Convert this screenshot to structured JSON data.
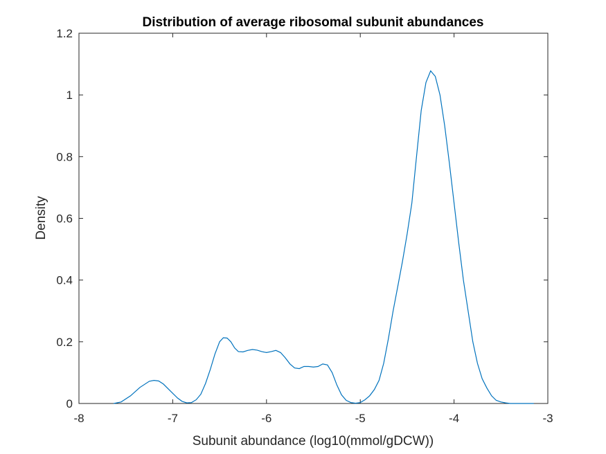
{
  "chart_data": {
    "type": "line",
    "title": "Distribution of average ribosomal subunit abundances",
    "xlabel": "Subunit abundance (log10(mmol/gDCW))",
    "ylabel": "Density",
    "xlim": [
      -8,
      -3
    ],
    "ylim": [
      0,
      1.2
    ],
    "xticks": [
      -8,
      -7,
      -6,
      -5,
      -4,
      -3
    ],
    "xtick_labels": [
      "-8",
      "-7",
      "-6",
      "-5",
      "-4",
      "-3"
    ],
    "yticks": [
      0,
      0.2,
      0.4,
      0.6,
      0.8,
      1,
      1.2
    ],
    "ytick_labels": [
      "0",
      "0.2",
      "0.4",
      "0.6",
      "0.8",
      "1",
      "1.2"
    ],
    "grid": false,
    "line_color": "#0072BD",
    "series": [
      {
        "x": [
          -7.63,
          -7.55,
          -7.45,
          -7.35,
          -7.25,
          -7.2,
          -7.15,
          -7.1,
          -7.0,
          -6.95,
          -6.9,
          -6.85,
          -6.8,
          -6.75,
          -6.7,
          -6.65,
          -6.6,
          -6.55,
          -6.5,
          -6.46,
          -6.42,
          -6.38,
          -6.34,
          -6.3,
          -6.25,
          -6.2,
          -6.15,
          -6.1,
          -6.05,
          -6.0,
          -5.95,
          -5.9,
          -5.85,
          -5.8,
          -5.75,
          -5.7,
          -5.65,
          -5.6,
          -5.55,
          -5.5,
          -5.45,
          -5.4,
          -5.35,
          -5.3,
          -5.25,
          -5.2,
          -5.15,
          -5.1,
          -5.05,
          -5.0,
          -4.95,
          -4.9,
          -4.85,
          -4.8,
          -4.75,
          -4.7,
          -4.65,
          -4.6,
          -4.55,
          -4.5,
          -4.45,
          -4.4,
          -4.35,
          -4.3,
          -4.25,
          -4.2,
          -4.15,
          -4.1,
          -4.05,
          -4.0,
          -3.95,
          -3.9,
          -3.85,
          -3.8,
          -3.75,
          -3.7,
          -3.65,
          -3.6,
          -3.55,
          -3.5,
          -3.45,
          -3.4,
          -3.35,
          -3.3,
          -3.25,
          -3.2,
          -3.15
        ],
        "y": [
          0,
          0.005,
          0.025,
          0.052,
          0.072,
          0.075,
          0.073,
          0.063,
          0.033,
          0.018,
          0.007,
          0.002,
          0.003,
          0.012,
          0.03,
          0.065,
          0.11,
          0.16,
          0.2,
          0.213,
          0.212,
          0.2,
          0.18,
          0.168,
          0.167,
          0.172,
          0.175,
          0.173,
          0.168,
          0.165,
          0.168,
          0.172,
          0.165,
          0.148,
          0.128,
          0.115,
          0.113,
          0.12,
          0.12,
          0.118,
          0.12,
          0.128,
          0.125,
          0.1,
          0.06,
          0.028,
          0.01,
          0.003,
          0.001,
          0.003,
          0.012,
          0.025,
          0.045,
          0.075,
          0.13,
          0.21,
          0.3,
          0.38,
          0.46,
          0.55,
          0.65,
          0.8,
          0.95,
          1.04,
          1.078,
          1.06,
          1.0,
          0.9,
          0.78,
          0.65,
          0.52,
          0.4,
          0.3,
          0.2,
          0.13,
          0.08,
          0.05,
          0.025,
          0.01,
          0.005,
          0.002,
          0,
          0,
          0,
          0,
          0,
          0
        ]
      }
    ]
  }
}
